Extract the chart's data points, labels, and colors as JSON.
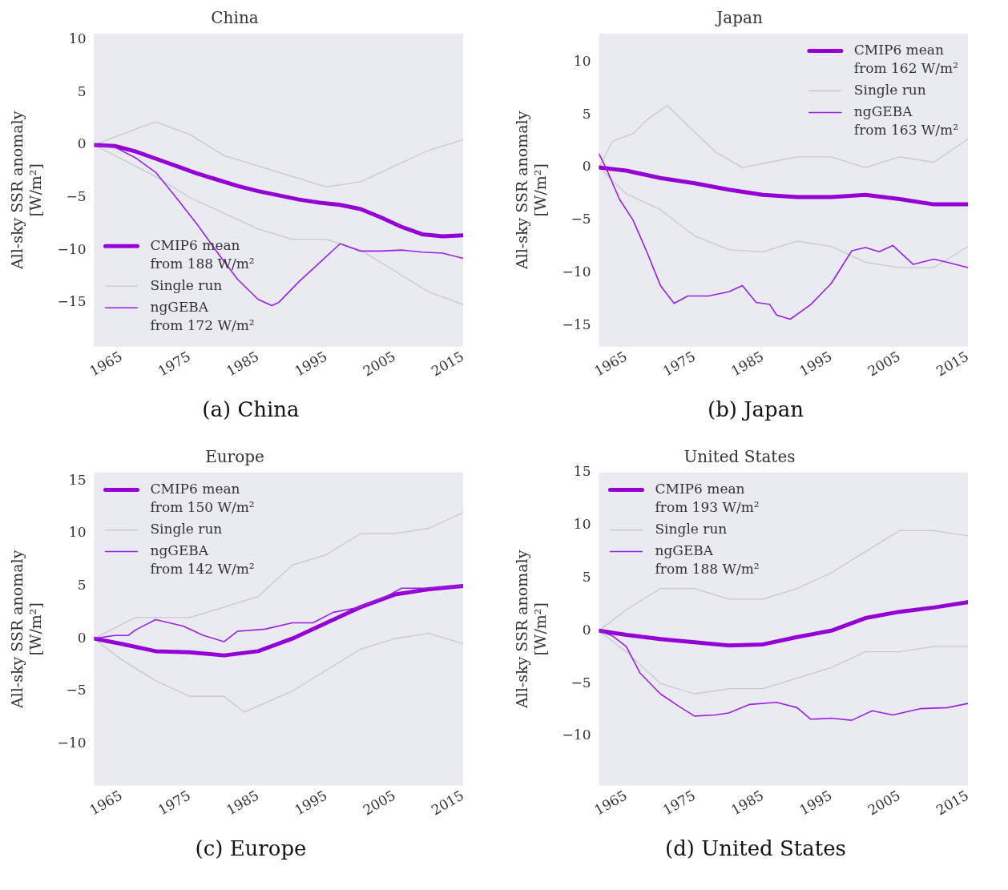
{
  "chart_data": [
    {
      "type": "line",
      "title": "China",
      "ylabel": "All-sky SSR anomaly\n[W/m²]",
      "annotations": [
        "(a) China"
      ],
      "xlim": [
        1961,
        2015
      ],
      "xticks": [
        1965,
        1975,
        1985,
        1995,
        2005,
        2015
      ],
      "ylim": [
        -19.2,
        10.6
      ],
      "yticks": [
        -15,
        -10,
        -5,
        0,
        5,
        10
      ],
      "grid": false,
      "legend": "bottom left",
      "series": [
        {
          "name": "CMIP6 mean\nfrom 188 W/m²",
          "color": "#9400d3",
          "x": [
            1961,
            1964,
            1967,
            1970,
            1973,
            1976,
            1979,
            1982,
            1985,
            1988,
            1991,
            1994,
            1997,
            2000,
            2003,
            2006,
            2009,
            2012,
            2015
          ],
          "values": [
            0,
            -0.1,
            -0.6,
            -1.3,
            -2.0,
            -2.7,
            -3.3,
            -3.9,
            -4.4,
            -4.8,
            -5.2,
            -5.5,
            -5.7,
            -6.1,
            -6.9,
            -7.8,
            -8.5,
            -8.7,
            -8.6
          ]
        },
        {
          "name": "Single run",
          "color": "#c8c8c8",
          "x": [
            1961,
            1967,
            1970,
            1975,
            1980,
            1985,
            1990,
            1995,
            2000,
            2005,
            2010,
            2015
          ],
          "values": [
            0,
            1.5,
            2.2,
            1,
            -1,
            -2,
            -3,
            -4,
            -3.5,
            -2,
            -0.5,
            0.5
          ]
        },
        {
          "name": "ngGEBA\nfrom 172 W/m²",
          "color": "#9b1fe0",
          "x": [
            1961,
            1964,
            1967,
            1970,
            1973,
            1976,
            1979,
            1982,
            1985,
            1987,
            1988,
            1991,
            1994,
            1997,
            2000,
            2003,
            2006,
            2009,
            2012,
            2015
          ],
          "values": [
            0,
            -0.2,
            -1.2,
            -2.6,
            -5.0,
            -7.5,
            -10.2,
            -12.8,
            -14.7,
            -15.3,
            -15.0,
            -13.0,
            -11.2,
            -9.4,
            -10.1,
            -10.1,
            -10.0,
            -10.2,
            -10.3,
            -10.8
          ]
        },
        {
          "color": "#c8c8c8",
          "x": [
            1961,
            1967,
            1970,
            1975,
            1980,
            1985,
            1990,
            1995,
            2000,
            2005,
            2010,
            2015
          ],
          "values": [
            0,
            -2,
            -3,
            -5,
            -6.5,
            -8,
            -9,
            -9,
            -10,
            -12,
            -14,
            -15.2
          ]
        }
      ]
    },
    {
      "type": "line",
      "title": "Japan",
      "ylabel": "All-sky SSR anomaly\n[W/m²]",
      "annotations": [
        "(b) Japan"
      ],
      "xlim": [
        1961,
        2015
      ],
      "xticks": [
        1965,
        1975,
        1985,
        1995,
        2005,
        2015
      ],
      "ylim": [
        -17,
        12.7
      ],
      "yticks": [
        -15,
        -10,
        -5,
        0,
        5,
        10
      ],
      "grid": false,
      "legend": "top right",
      "series": [
        {
          "name": "CMIP6 mean\nfrom 162 W/m²",
          "color": "#9400d3",
          "x": [
            1961,
            1965,
            1970,
            1975,
            1980,
            1985,
            1990,
            1995,
            2000,
            2005,
            2010,
            2015
          ],
          "values": [
            0,
            -0.3,
            -1.0,
            -1.5,
            -2.1,
            -2.6,
            -2.8,
            -2.8,
            -2.6,
            -3.0,
            -3.5,
            -3.5
          ]
        },
        {
          "name": "Single run",
          "color": "#c8c8c8",
          "x": [
            1961,
            1963,
            1966,
            1968,
            1971,
            1974,
            1978,
            1982,
            1986,
            1990,
            1995,
            2000,
            2005,
            2010,
            2015
          ],
          "values": [
            0,
            2.5,
            3.2,
            4.5,
            5.9,
            4,
            1.5,
            0,
            0.5,
            1,
            1,
            0,
            1,
            0.5,
            2.7
          ]
        },
        {
          "name": "ngGEBA\nfrom 163 W/m²",
          "color": "#9b1fe0",
          "x": [
            1961,
            1962,
            1964,
            1966,
            1968,
            1970,
            1972,
            1974,
            1977,
            1980,
            1982,
            1984,
            1986,
            1987,
            1989,
            1992,
            1995,
            1998,
            2000,
            2002,
            2004,
            2007,
            2010,
            2012,
            2015
          ],
          "values": [
            1.3,
            0,
            -3.0,
            -5.0,
            -8.0,
            -11.2,
            -12.9,
            -12.2,
            -12.2,
            -11.8,
            -11.2,
            -12.8,
            -13.0,
            -14.0,
            -14.4,
            -13.0,
            -11.0,
            -7.9,
            -7.6,
            -8.0,
            -7.4,
            -9.2,
            -8.7,
            -9.0,
            -9.5
          ]
        },
        {
          "color": "#c8c8c8",
          "x": [
            1961,
            1965,
            1970,
            1975,
            1980,
            1985,
            1990,
            1995,
            2000,
            2005,
            2010,
            2015
          ],
          "values": [
            0,
            -2.5,
            -4,
            -6.5,
            -7.8,
            -8,
            -7,
            -7.5,
            -9,
            -9.5,
            -9.5,
            -7.5
          ]
        }
      ]
    },
    {
      "type": "line",
      "title": "Europe",
      "ylabel": "All-sky SSR anomaly\n[W/m²]",
      "annotations": [
        "(c) Europe"
      ],
      "xlim": [
        1961,
        2015
      ],
      "xticks": [
        1965,
        1975,
        1985,
        1995,
        2005,
        2015
      ],
      "ylim": [
        -14,
        15.8
      ],
      "yticks": [
        -10,
        -5,
        0,
        5,
        10,
        15
      ],
      "grid": false,
      "legend": "top left",
      "series": [
        {
          "name": "CMIP6 mean\nfrom 150 W/m²",
          "color": "#9400d3",
          "x": [
            1961,
            1965,
            1970,
            1975,
            1980,
            1985,
            1990,
            1995,
            2000,
            2005,
            2010,
            2015
          ],
          "values": [
            0,
            -0.5,
            -1.2,
            -1.3,
            -1.6,
            -1.2,
            0,
            1.5,
            3.0,
            4.2,
            4.7,
            5.0
          ]
        },
        {
          "name": "Single run",
          "color": "#c8c8c8",
          "x": [
            1961,
            1967,
            1975,
            1980,
            1985,
            1990,
            1995,
            2000,
            2005,
            2010,
            2015
          ],
          "values": [
            0,
            2,
            2,
            3,
            4,
            7,
            8,
            10,
            10,
            10.5,
            12
          ]
        },
        {
          "name": "ngGEBA\nfrom 142 W/m²",
          "color": "#9b1fe0",
          "x": [
            1961,
            1964,
            1966,
            1967,
            1970,
            1974,
            1977,
            1980,
            1982,
            1986,
            1990,
            1993,
            1996,
            2000,
            2004,
            2006,
            2010,
            2015
          ],
          "values": [
            0,
            0.3,
            0.3,
            0.8,
            1.8,
            1.2,
            0.3,
            -0.3,
            0.7,
            0.9,
            1.5,
            1.5,
            2.5,
            3.0,
            4.1,
            4.8,
            4.8,
            5.0
          ]
        },
        {
          "color": "#c8c8c8",
          "x": [
            1961,
            1965,
            1970,
            1975,
            1980,
            1983,
            1990,
            1995,
            2000,
            2005,
            2010,
            2015
          ],
          "values": [
            0,
            -2,
            -4,
            -5.5,
            -5.5,
            -7,
            -5,
            -3,
            -1,
            0,
            0.5,
            -0.5
          ]
        }
      ]
    },
    {
      "type": "line",
      "title": "United States",
      "ylabel": "All-sky SSR anomaly\n[W/m²]",
      "annotations": [
        "(d) United States"
      ],
      "xlim": [
        1961,
        2015
      ],
      "xticks": [
        1965,
        1975,
        1985,
        1995,
        2005,
        2015
      ],
      "ylim": [
        -14.7,
        15
      ],
      "yticks": [
        -10,
        -5,
        0,
        5,
        10,
        15
      ],
      "grid": false,
      "legend": "top left",
      "series": [
        {
          "name": "CMIP6 mean\nfrom 193 W/m²",
          "color": "#9400d3",
          "x": [
            1961,
            1965,
            1970,
            1975,
            1980,
            1985,
            1990,
            1995,
            2000,
            2005,
            2010,
            2015
          ],
          "values": [
            0,
            -0.4,
            -0.8,
            -1.1,
            -1.4,
            -1.3,
            -0.6,
            0.0,
            1.2,
            1.8,
            2.2,
            2.7
          ]
        },
        {
          "name": "Single run",
          "color": "#c8c8c8",
          "x": [
            1961,
            1965,
            1970,
            1975,
            1980,
            1985,
            1990,
            1995,
            2000,
            2005,
            2010,
            2015
          ],
          "values": [
            0,
            2,
            4,
            4,
            3,
            3,
            4,
            5.5,
            7.5,
            9.5,
            9.5,
            9
          ]
        },
        {
          "name": "ngGEBA\nfrom 188 W/m²",
          "color": "#9b1fe0",
          "x": [
            1961,
            1963,
            1965,
            1967,
            1970,
            1973,
            1975,
            1978,
            1980,
            1983,
            1987,
            1990,
            1992,
            1995,
            1998,
            2001,
            2004,
            2008,
            2012,
            2015
          ],
          "values": [
            0,
            -0.5,
            -1.5,
            -4,
            -6,
            -7.3,
            -8.1,
            -8.0,
            -7.8,
            -7.0,
            -6.8,
            -7.3,
            -8.4,
            -8.3,
            -8.5,
            -7.6,
            -8.0,
            -7.4,
            -7.3,
            -6.9
          ]
        },
        {
          "color": "#c8c8c8",
          "x": [
            1961,
            1965,
            1970,
            1975,
            1980,
            1985,
            1990,
            1995,
            2000,
            2005,
            2010,
            2015
          ],
          "values": [
            0,
            -2,
            -5,
            -6,
            -5.5,
            -5.5,
            -4.5,
            -3.5,
            -2,
            -2,
            -1.5,
            -1.5
          ]
        }
      ]
    }
  ]
}
